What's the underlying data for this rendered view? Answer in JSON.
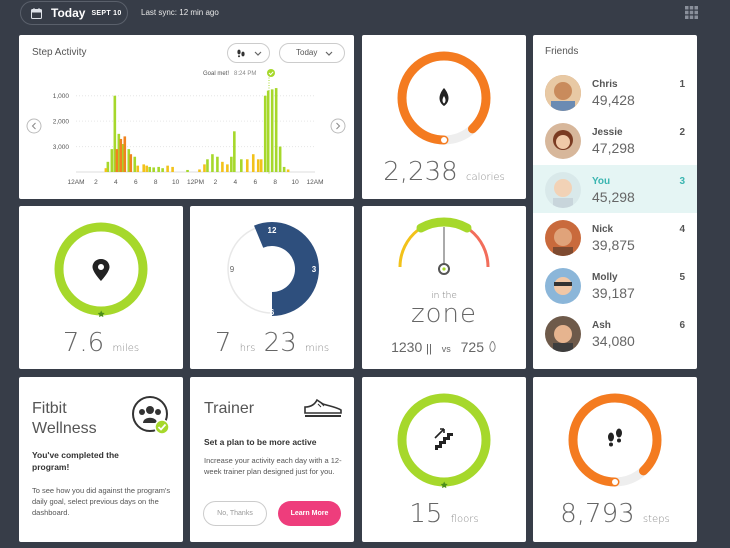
{
  "header": {
    "today_label": "Today",
    "date": "SEPT 10",
    "sync": "Last sync: 12 min ago"
  },
  "step_activity": {
    "title": "Step Activity",
    "filter_label": "Today",
    "goal_label": "Goal met!",
    "goal_time": "8:24 PM",
    "y_ticks": [
      "3,000",
      "2,000",
      "1,000"
    ],
    "x_ticks": [
      "12AM",
      "2",
      "4",
      "6",
      "8",
      "10",
      "12PM",
      "2",
      "4",
      "6",
      "8",
      "10",
      "12AM"
    ]
  },
  "chart_data": {
    "type": "bar",
    "title": "Step Activity",
    "ylim": [
      0,
      3500
    ],
    "y_ticks": [
      1000,
      2000,
      3000
    ],
    "x_ticks": [
      "12AM",
      "2",
      "4",
      "6",
      "8",
      "10",
      "12PM",
      "2",
      "4",
      "6",
      "8",
      "10",
      "12AM"
    ],
    "series": [
      {
        "color": "#a6d82b",
        "bars": [
          [
            3.2,
            400
          ],
          [
            3.6,
            900
          ],
          [
            3.9,
            3000
          ],
          [
            4.3,
            1500
          ],
          [
            4.7,
            1100
          ],
          [
            5.3,
            900
          ],
          [
            5.9,
            600
          ],
          [
            7.4,
            200
          ],
          [
            7.8,
            180
          ],
          [
            8.3,
            200
          ],
          [
            8.7,
            150
          ],
          [
            11.2,
            80
          ],
          [
            13.2,
            500
          ],
          [
            13.7,
            700
          ],
          [
            14.2,
            600
          ],
          [
            15.6,
            600
          ],
          [
            15.9,
            1600
          ],
          [
            16.6,
            500
          ],
          [
            19.0,
            3000
          ],
          [
            19.3,
            3200
          ],
          [
            19.7,
            3250
          ],
          [
            20.1,
            3300
          ],
          [
            20.5,
            1000
          ],
          [
            20.9,
            200
          ]
        ]
      },
      {
        "color": "#f0831f",
        "bars": [
          [
            4.1,
            900
          ],
          [
            4.5,
            1300
          ],
          [
            4.9,
            1400
          ],
          [
            5.5,
            700
          ]
        ]
      },
      {
        "color": "#f2c21a",
        "bars": [
          [
            3.0,
            150
          ],
          [
            6.2,
            250
          ],
          [
            6.8,
            300
          ],
          [
            7.1,
            250
          ],
          [
            9.2,
            250
          ],
          [
            9.7,
            200
          ],
          [
            12.4,
            100
          ],
          [
            12.9,
            300
          ],
          [
            14.7,
            400
          ],
          [
            15.2,
            300
          ],
          [
            17.2,
            500
          ],
          [
            17.8,
            700
          ],
          [
            18.3,
            500
          ],
          [
            18.6,
            500
          ],
          [
            21.3,
            100
          ]
        ]
      }
    ]
  },
  "calories": {
    "value": "2,238",
    "unit": "calories",
    "progress": 0.88
  },
  "friends": {
    "title": "Friends",
    "list": [
      {
        "name": "Chris",
        "steps": "49,428",
        "rank": "1"
      },
      {
        "name": "Jessie",
        "steps": "47,298",
        "rank": "2"
      },
      {
        "name": "You",
        "steps": "45,298",
        "rank": "3"
      },
      {
        "name": "Nick",
        "steps": "39,875",
        "rank": "4"
      },
      {
        "name": "Molly",
        "steps": "39,187",
        "rank": "5"
      },
      {
        "name": "Ash",
        "steps": "34,080",
        "rank": "6"
      }
    ]
  },
  "distance": {
    "value": "7.6",
    "unit": "miles",
    "progress": 1.0
  },
  "sleep": {
    "hours": "7",
    "hrs_unit": "hrs",
    "minutes": "23",
    "mins_unit": "mins",
    "dial": [
      "12",
      "3",
      "6",
      "9"
    ]
  },
  "zone": {
    "line1": "in the",
    "line2": "zone",
    "intake": "1230",
    "vs": "vs",
    "burned": "725"
  },
  "wellness": {
    "title_line1": "Fitbit",
    "title_line2": "Wellness",
    "heading": "You've completed the program!",
    "body": "To see how you did against the program's daily goal, select previous days on the dashboard."
  },
  "trainer": {
    "title": "Trainer",
    "heading": "Set a plan to be more active",
    "body": "Increase your activity each day with a 12-week trainer plan designed just for you.",
    "decline": "No, Thanks",
    "accept": "Learn More"
  },
  "floors": {
    "value": "15",
    "unit": "floors",
    "progress": 1.0
  },
  "steps": {
    "value": "8,793",
    "unit": "steps",
    "progress": 0.88
  }
}
